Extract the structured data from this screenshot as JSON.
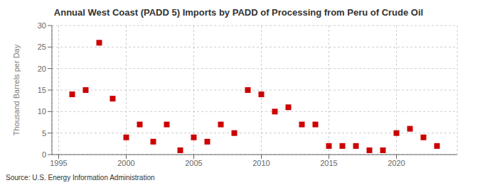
{
  "chart_data": {
    "type": "scatter",
    "title": "Annual West Coast (PADD 5) Imports by PADD of Processing from Peru of Crude Oil",
    "ylabel": "Thousand Barrels per Day",
    "annotation": "Source: U.S. Energy Information Administration",
    "x": [
      1996,
      1997,
      1998,
      1999,
      2000,
      2001,
      2002,
      2003,
      2004,
      2005,
      2006,
      2007,
      2008,
      2009,
      2010,
      2011,
      2012,
      2013,
      2014,
      2015,
      2016,
      2017,
      2018,
      2019,
      2020,
      2021,
      2022,
      2023
    ],
    "values": [
      14,
      15,
      26,
      13,
      4,
      7,
      3,
      7,
      1,
      4,
      3,
      7,
      5,
      15,
      14,
      10,
      11,
      7,
      7,
      2,
      2,
      2,
      1,
      1,
      5,
      6,
      4,
      2
    ],
    "color": "#cc0000",
    "marker": "square",
    "xlim": [
      1994.5,
      2024.5
    ],
    "xticks": [
      1995,
      2000,
      2005,
      2010,
      2015,
      2020
    ],
    "ylim": [
      0,
      30
    ],
    "yticks": [
      0,
      5,
      10,
      15,
      20,
      25,
      30
    ],
    "grid": true
  }
}
